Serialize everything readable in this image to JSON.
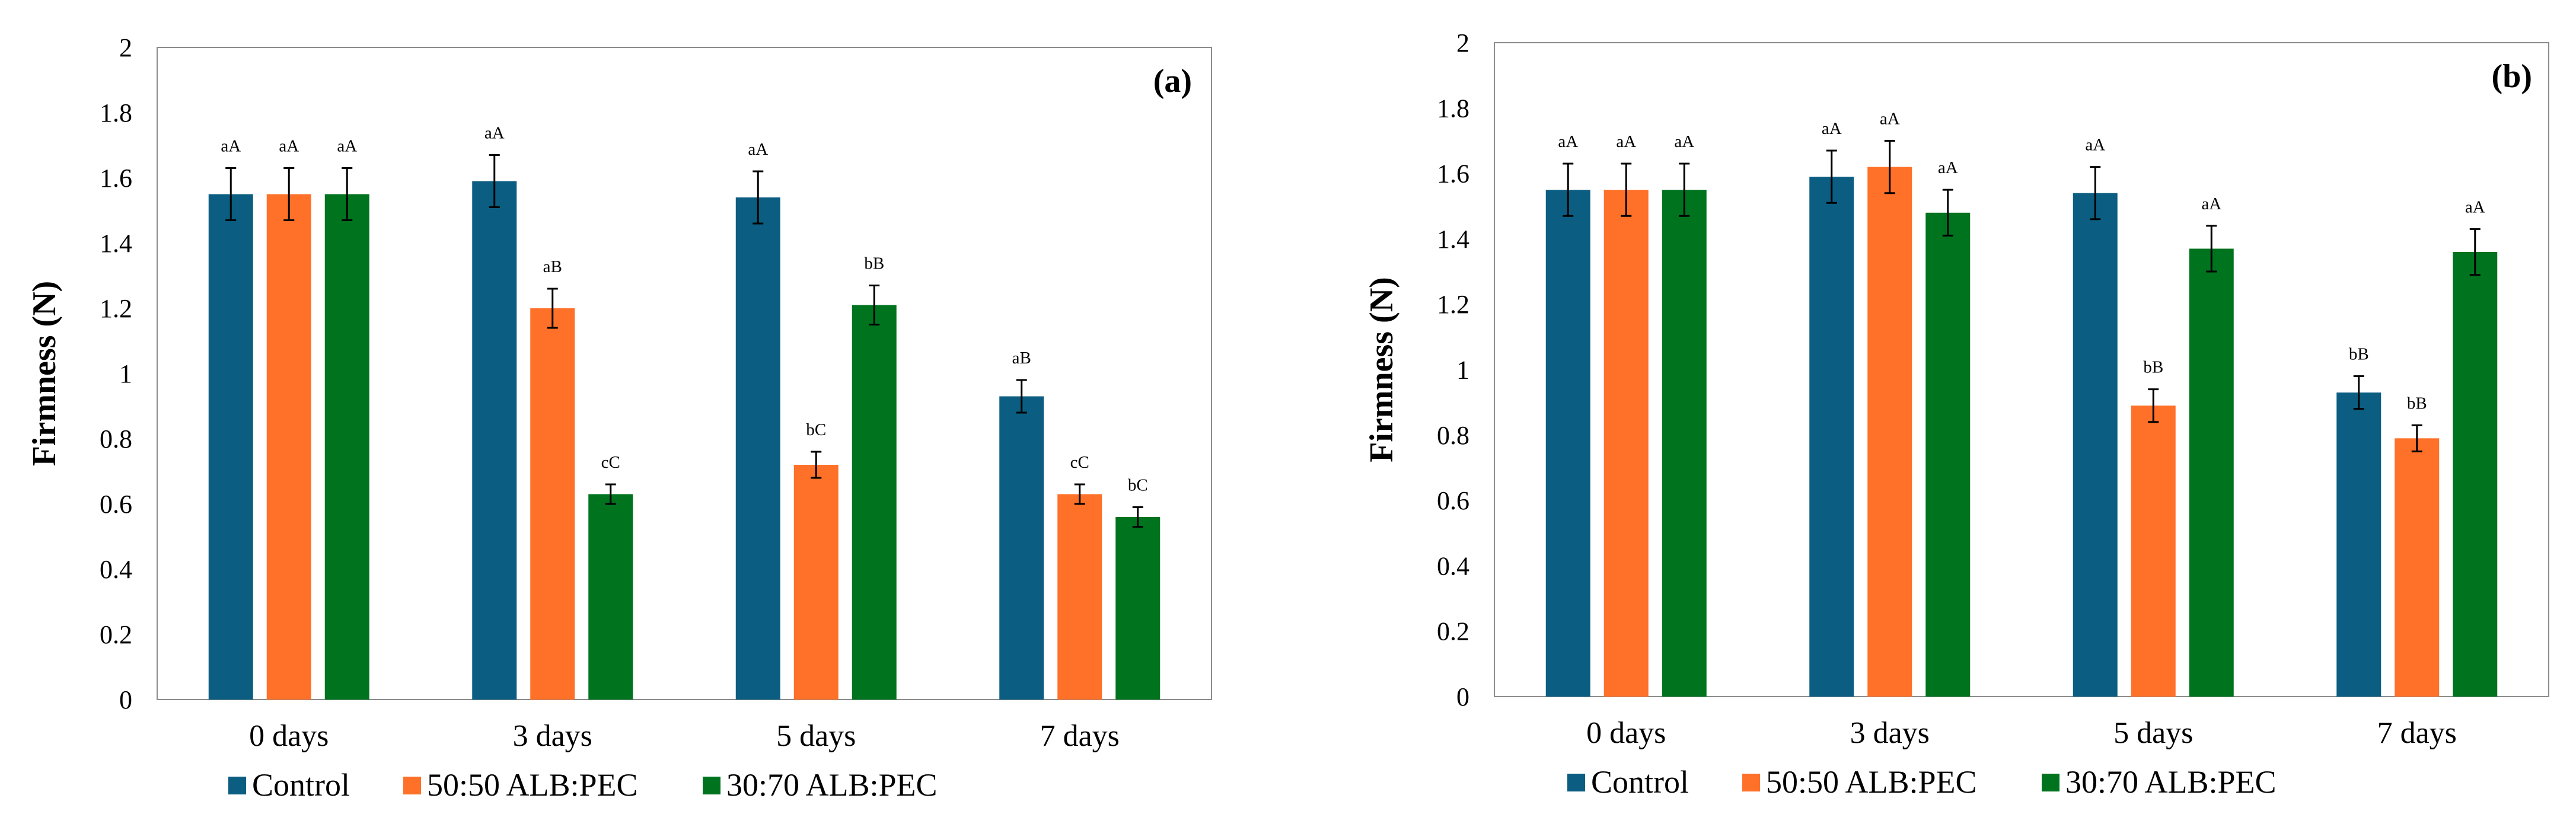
{
  "chart_data": [
    {
      "type": "bar",
      "panel_label": "(a)",
      "ylabel": "Firmness (N)",
      "xlabel": "",
      "ylim": [
        0,
        2
      ],
      "yticks": [
        "0",
        "0.2",
        "0.4",
        "0.6",
        "0.8",
        "1",
        "1.2",
        "1.4",
        "1.6",
        "1.8",
        "2"
      ],
      "grid": false,
      "legend_position": "bottom",
      "categories": [
        "0 days",
        "3 days",
        "5 days",
        "7 days"
      ],
      "series": [
        {
          "name": "Control",
          "color": "#0B5E82",
          "values": [
            1.55,
            1.59,
            1.54,
            0.93
          ],
          "errors": [
            0.08,
            0.08,
            0.08,
            0.05
          ],
          "labels": [
            "aA",
            "aA",
            "aA",
            "aB"
          ]
        },
        {
          "name": "50:50 ALB:PEC",
          "color": "#FF7028",
          "values": [
            1.55,
            1.2,
            0.72,
            0.63
          ],
          "errors": [
            0.08,
            0.06,
            0.04,
            0.03
          ],
          "labels": [
            "aA",
            "aB",
            "bC",
            "cC"
          ]
        },
        {
          "name": "30:70 ALB:PEC",
          "color": "#00731F",
          "values": [
            1.55,
            0.63,
            1.21,
            0.56
          ],
          "errors": [
            0.08,
            0.03,
            0.06,
            0.03
          ],
          "labels": [
            "aA",
            "cC",
            "bB",
            "bC"
          ]
        }
      ]
    },
    {
      "type": "bar",
      "panel_label": "(b)",
      "ylabel": "Firmness (N)",
      "xlabel": "",
      "ylim": [
        0,
        2
      ],
      "yticks": [
        "0",
        "0.2",
        "0.4",
        "0.6",
        "0.8",
        "1",
        "1.2",
        "1.4",
        "1.6",
        "1.8",
        "2"
      ],
      "grid": false,
      "legend_position": "bottom",
      "categories": [
        "0 days",
        "3 days",
        "5 days",
        "7 days"
      ],
      "series": [
        {
          "name": "Control",
          "color": "#0B5E82",
          "values": [
            1.55,
            1.59,
            1.54,
            0.93
          ],
          "errors": [
            0.08,
            0.08,
            0.08,
            0.05
          ],
          "labels": [
            "aA",
            "aA",
            "aA",
            "bB"
          ]
        },
        {
          "name": "50:50 ALB:PEC",
          "color": "#FF7028",
          "values": [
            1.55,
            1.62,
            0.89,
            0.79
          ],
          "errors": [
            0.08,
            0.08,
            0.05,
            0.04
          ],
          "labels": [
            "aA",
            "aA",
            "bB",
            "bB"
          ]
        },
        {
          "name": "30:70 ALB:PEC",
          "color": "#00731F",
          "values": [
            1.55,
            1.48,
            1.37,
            1.36
          ],
          "errors": [
            0.08,
            0.07,
            0.07,
            0.07
          ],
          "labels": [
            "aA",
            "aA",
            "aA",
            "aA"
          ]
        }
      ]
    }
  ]
}
